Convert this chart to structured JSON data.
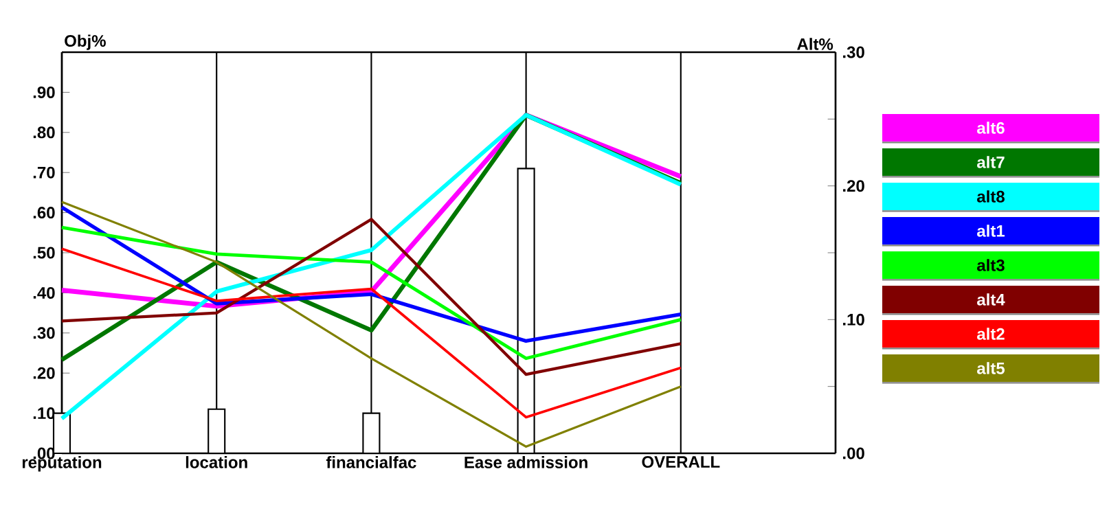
{
  "chart_data": {
    "type": "line",
    "categories": [
      "reputation",
      "location",
      "financialfac",
      "Ease admission",
      "OVERALL"
    ],
    "ylabel": "Obj%",
    "y2label": "Alt%",
    "ylim": [
      0,
      1
    ],
    "yticks": [
      {
        "value": 0,
        "label": ".00"
      },
      {
        "value": 0.1,
        "label": ".10"
      },
      {
        "value": 0.2,
        "label": ".20"
      },
      {
        "value": 0.3,
        "label": ".30"
      },
      {
        "value": 0.4,
        "label": ".40"
      },
      {
        "value": 0.5,
        "label": ".50"
      },
      {
        "value": 0.6,
        "label": ".60"
      },
      {
        "value": 0.7,
        "label": ".70"
      },
      {
        "value": 0.8,
        "label": ".80"
      },
      {
        "value": 0.9,
        "label": ".90"
      }
    ],
    "y2lim": [
      0,
      0.3
    ],
    "y2ticks": [
      {
        "value": 0,
        "label": ".00"
      },
      {
        "value": 0.05,
        "label": null
      },
      {
        "value": 0.1,
        "label": ".10"
      },
      {
        "value": 0.15,
        "label": null
      },
      {
        "value": 0.2,
        "label": ".20"
      },
      {
        "value": 0.25,
        "label": null
      },
      {
        "value": 0.3,
        "label": ".30"
      }
    ],
    "grid": "x",
    "legend": "right",
    "marker": "none",
    "line_style": "solid",
    "series": [
      {
        "type": "bar",
        "color": "#ffffff",
        "values": [
          0.1,
          0.11,
          0.1,
          0.71,
          null
        ]
      },
      {
        "name": "alt6",
        "color": "#ff00ff",
        "axis": "y2",
        "values": [
          0.122,
          0.11,
          0.121,
          0.253,
          0.207
        ]
      },
      {
        "name": "alt7",
        "color": "#007700",
        "axis": "y2",
        "values": [
          0.07,
          0.143,
          0.092,
          0.253,
          0.202
        ]
      },
      {
        "name": "alt8",
        "color": "#00ffff",
        "axis": "y2",
        "values": [
          0.026,
          0.121,
          0.152,
          0.253,
          0.201
        ]
      },
      {
        "name": "alt1",
        "color": "#0000ff",
        "axis": "y2",
        "values": [
          0.184,
          0.112,
          0.119,
          0.084,
          0.104
        ]
      },
      {
        "name": "alt3",
        "color": "#00ff00",
        "axis": "y2",
        "values": [
          0.169,
          0.149,
          0.143,
          0.071,
          0.1
        ]
      },
      {
        "name": "alt4",
        "color": "#800000",
        "axis": "y2",
        "values": [
          0.099,
          0.105,
          0.175,
          0.059,
          0.082
        ]
      },
      {
        "name": "alt2",
        "color": "#ff0000",
        "axis": "y2",
        "values": [
          0.153,
          0.114,
          0.123,
          0.027,
          0.064
        ]
      },
      {
        "name": "alt5",
        "color": "#808000",
        "axis": "y2",
        "values": [
          0.188,
          0.143,
          0.071,
          0.005,
          0.05
        ]
      }
    ]
  }
}
